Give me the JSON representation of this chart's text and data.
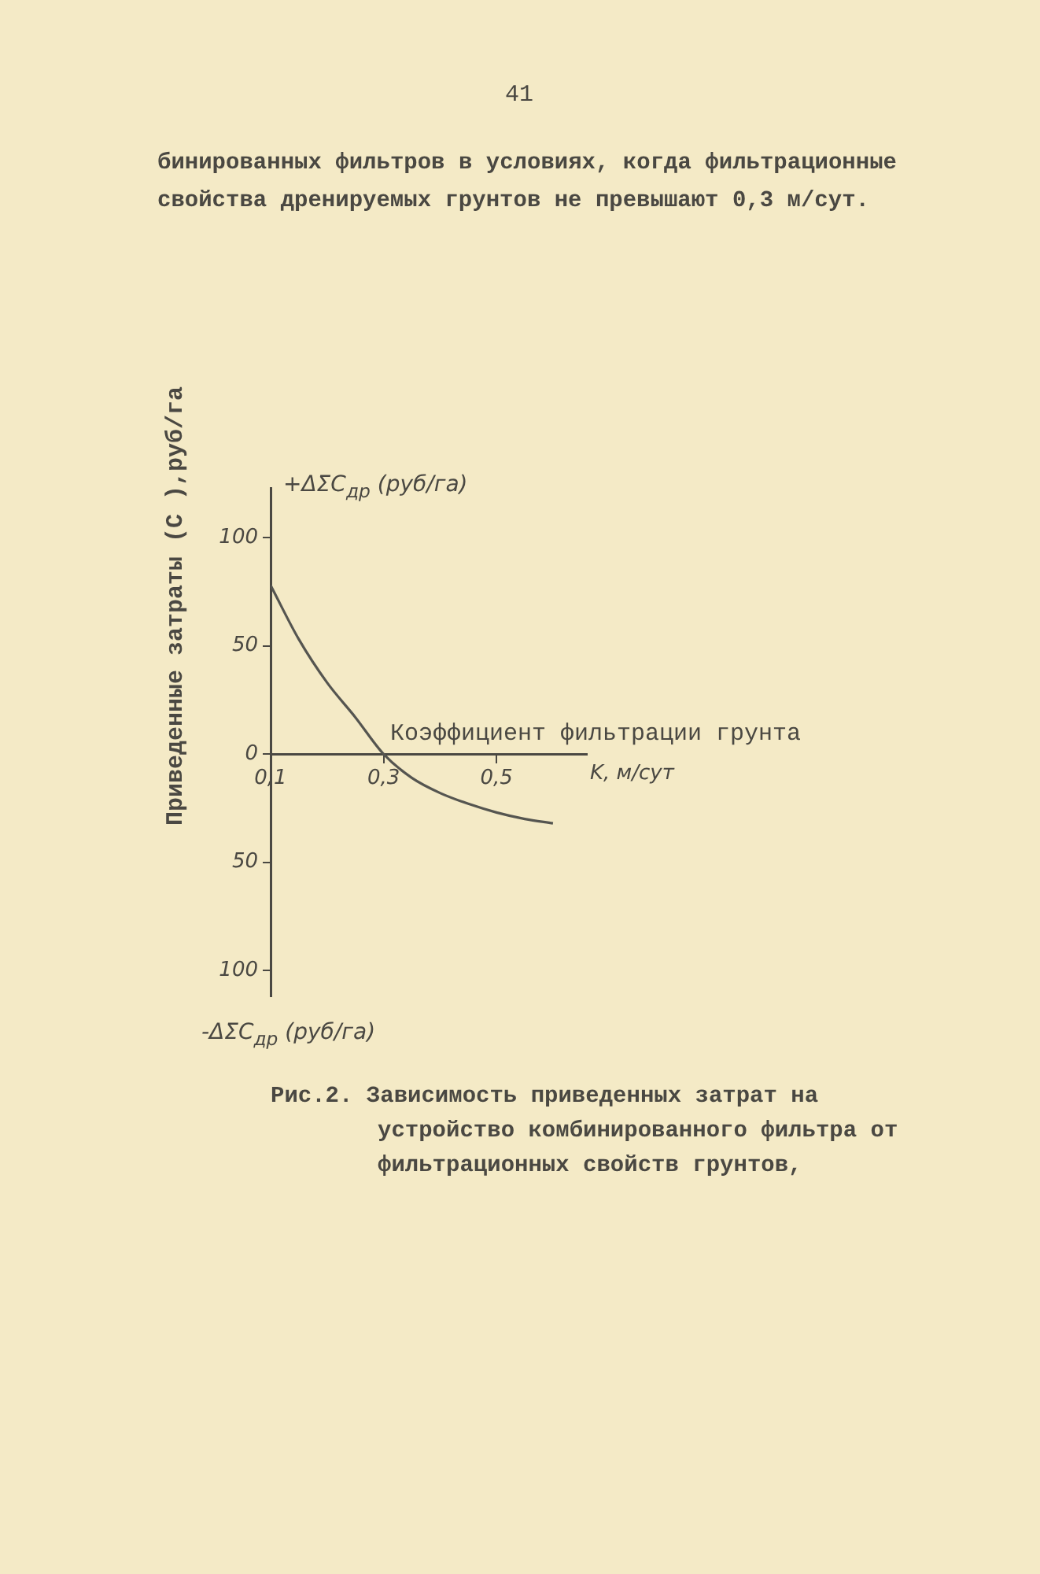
{
  "chart_data": {
    "type": "line",
    "ylabel": "Приведенные затраты (С ),руб/га",
    "xlabel": "K, м/сут",
    "annotations": [
      "41",
      "бинированных фильтров в условиях, когда фильтрационные свойства дренируемых грунтов не превышают 0,3 м/сут.",
      "Коэффициент фильтрации грунта",
      "+ΔΣС$_{др}$ (руб/га)",
      "-ΔΣС$_{др}$ (руб/га)",
      "Рис.2. Зависимость приведенных затрат на устройство комбинированного фильтра от фильтрационных свойств грунтов,"
    ],
    "x": [
      0.1,
      0.15,
      0.2,
      0.25,
      0.3,
      0.35,
      0.4,
      0.45,
      0.5,
      0.55,
      0.6
    ],
    "series": [
      {
        "color": "#555550",
        "values": [
          78,
          53,
          33,
          17,
          0,
          -11,
          -18,
          -23,
          -27,
          -30,
          -32
        ]
      }
    ],
    "xlim": [
      0.1,
      0.66
    ],
    "xticks": [
      {
        "value": 0.1,
        "label": "0,1"
      },
      {
        "value": 0.3,
        "label": "0,3"
      },
      {
        "value": 0.5,
        "label": "0,5"
      }
    ],
    "ylim": [
      -112,
      123
    ],
    "yticks": [
      {
        "value": -100,
        "label": "100"
      },
      {
        "value": -50,
        "label": "50"
      },
      0,
      50,
      100
    ],
    "marker": "none",
    "line_style": "solid"
  }
}
